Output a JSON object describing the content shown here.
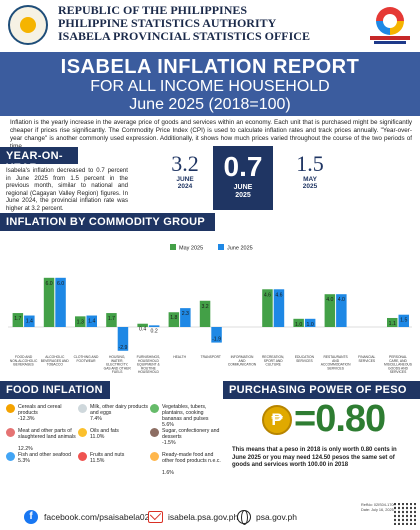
{
  "header": {
    "line1": "REPUBLIC OF THE PHILIPPINES",
    "line2": "PHILIPPINE STATISTICS AUTHORITY",
    "line3": "ISABELA PROVINCIAL STATISTICS OFFICE"
  },
  "title": {
    "main": "ISABELA INFLATION REPORT",
    "sub": "FOR ALL INCOME HOUSEHOLD",
    "period": "June 2025 (2018=100)"
  },
  "intro": "Inflation is the yearly increase in the average price of goods and services within an economy. Each unit that is purchased might be significantly cheaper if prices rise significantly. The Commodity Price Index (CPI) is used to calculate inflation rates and track prices annually. \"Year-over-year change\" is another commonly used expression. Additionally, it shows how much prices varied throughout the course of the two periods of time.",
  "yoy": {
    "heading": "YEAR-ON-YEAR",
    "text": "Isabela's inflation decreased to 0.7 percent in June 2025 from 1.5 percent in the previous month, similar to national and regional (Cagayan Valley Region) figures. In June 2024, the provincial inflation rate was higher at 3.2 percent.",
    "left_value": "3.2",
    "left_label_1": "JUNE",
    "left_label_2": "2024",
    "center_value": "0.7",
    "center_label_1": "JUNE",
    "center_label_2": "2025",
    "right_value": "1.5",
    "right_label_1": "MAY",
    "right_label_2": "2025"
  },
  "commodity_heading": "INFLATION BY COMMODITY GROUP",
  "colors": {
    "may": "#43a047",
    "june": "#1e88e5",
    "navy": "#1f3563",
    "title_band": "#3b5c9e",
    "peso_green": "#2e7d32"
  },
  "chart_data": {
    "type": "bar",
    "categories": [
      "FOOD AND NON-ALCOHOLIC BEVERAGES",
      "ALCOHOLIC BEVERAGES AND TOBACCO",
      "CLOTHING AND FOOTWEAR",
      "HOUSING, WATER, ELECTRICITY, GAS AND OTHER FUELS",
      "FURNISHINGS, HOUSEHOLD EQUIPMENT & ROUTINE HOUSEHOLD MAINTENANCE",
      "HEALTH",
      "TRANSPORT",
      "INFORMATION AND COMMUNICATION",
      "RECREATION, SPORT AND CULTURE",
      "EDUCATION SERVICES",
      "RESTAURANTS AND ACCOMMODATION SERVICES",
      "FINANCIAL SERVICES",
      "PERSONAL CARE, AND MISCELLANEOUS GOODS AND SERVICES"
    ],
    "series": [
      {
        "name": "May 2025",
        "values": [
          1.7,
          6.0,
          1.3,
          1.7,
          0.4,
          1.8,
          3.2,
          0.0,
          4.6,
          1.0,
          4.0,
          0.0,
          1.1
        ]
      },
      {
        "name": "June 2025",
        "values": [
          1.4,
          6.0,
          1.4,
          -2.9,
          0.2,
          2.3,
          -1.9,
          0.0,
          4.6,
          1.0,
          4.0,
          0.0,
          1.5
        ]
      }
    ],
    "legend": "top-left",
    "ylim": [
      -4,
      8
    ]
  },
  "food_inflation": {
    "heading": "FOOD INFLATION",
    "items": [
      {
        "name": "Cereals and cereal products",
        "value": "-12.3%"
      },
      {
        "name": "Milk, other dairy products and eggs",
        "value": "7.4%"
      },
      {
        "name": "Vegetables, tubers, plantains, cooking bananas and pulses",
        "value": "5.6%"
      },
      {
        "name": "Meat and other parts of slaughtered land animals",
        "value": "12.2%"
      },
      {
        "name": "Oils and fats",
        "value": "11.0%"
      },
      {
        "name": "Sugar, confectionery and desserts",
        "value": "-1.5%"
      },
      {
        "name": "Fish and other seafood",
        "value": "5.3%"
      },
      {
        "name": "Fruits and nuts",
        "value": "11.5%"
      },
      {
        "name": "Ready-made food and other food products n.e.c.",
        "value": "1.6%"
      }
    ]
  },
  "purchasing_power": {
    "heading": "PURCHASING POWER OF PESO",
    "value": "=0.80",
    "symbol": "₱",
    "text": "This means that a peso in 2018 is only worth 0.80 cents in June 2025 or you may need 124.50 pesos the same set of goods and services worth 100.00 in 2018",
    "ref_no": "RefNo: 02IS04-1706",
    "date": "Date: July 16, 2025"
  },
  "footer": {
    "facebook": "facebook.com/psaisabela0231",
    "email": "isabela.psa.gov.ph",
    "web": "psa.gov.ph"
  }
}
